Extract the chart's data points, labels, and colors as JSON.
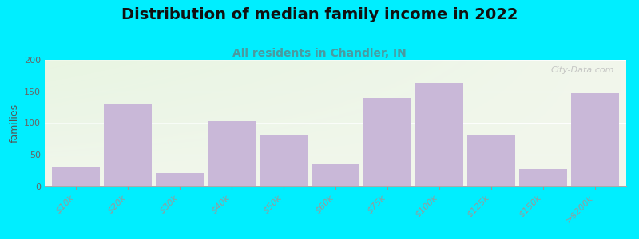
{
  "title": "Distribution of median family income in 2022",
  "subtitle": "All residents in Chandler, IN",
  "ylabel": "families",
  "categories": [
    "$10k",
    "$20k",
    "$30k",
    "$40k",
    "$50k",
    "$60k",
    "$75k",
    "$100k",
    "$125k",
    "$150k",
    ">$200k"
  ],
  "values": [
    30,
    130,
    22,
    103,
    80,
    35,
    140,
    163,
    80,
    28,
    147
  ],
  "bar_color": "#c9b8d8",
  "background_outer": "#00eeff",
  "background_inner": "#f2f7ec",
  "title_fontsize": 14,
  "subtitle_fontsize": 10,
  "subtitle_color": "#4a9aa0",
  "ylabel_fontsize": 9,
  "tick_fontsize": 8,
  "ylim": [
    0,
    200
  ],
  "yticks": [
    0,
    50,
    100,
    150,
    200
  ],
  "watermark": "City-Data.com"
}
